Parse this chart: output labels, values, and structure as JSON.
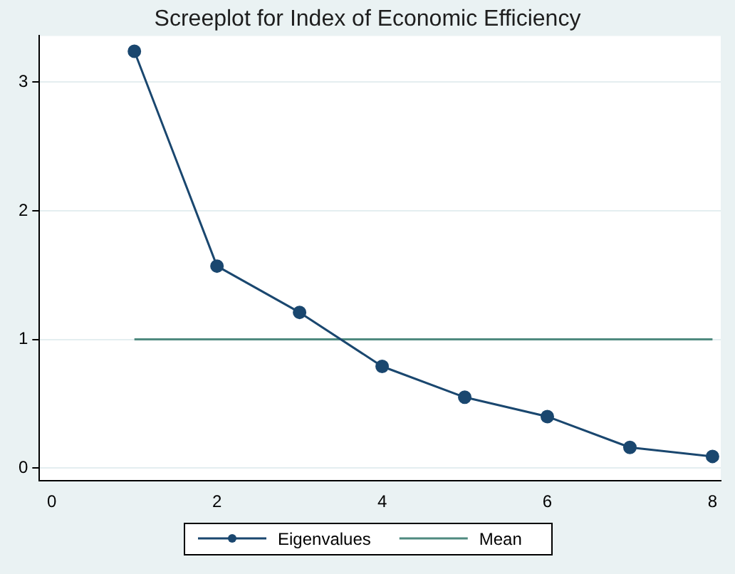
{
  "chart_data": {
    "type": "line",
    "title": "Screeplot for Index of Economic Efficiency",
    "x": [
      1,
      2,
      3,
      4,
      5,
      6,
      7,
      8
    ],
    "series": [
      {
        "name": "Eigenvalues",
        "color": "#1a476f",
        "marker": "circle",
        "values": [
          3.24,
          1.57,
          1.21,
          0.79,
          0.55,
          0.4,
          0.16,
          0.09
        ]
      },
      {
        "name": "Mean",
        "color": "#4f8a7f",
        "marker": "none",
        "values": [
          1,
          1,
          1,
          1,
          1,
          1,
          1,
          1
        ]
      }
    ],
    "xlim": [
      -0.15,
      8.1
    ],
    "xticks": [
      0,
      2,
      4,
      6,
      8
    ],
    "ylim": [
      -0.1,
      3.36
    ],
    "yticks": [
      0,
      1,
      2,
      3
    ],
    "grid": "y",
    "legend": "bottom"
  }
}
